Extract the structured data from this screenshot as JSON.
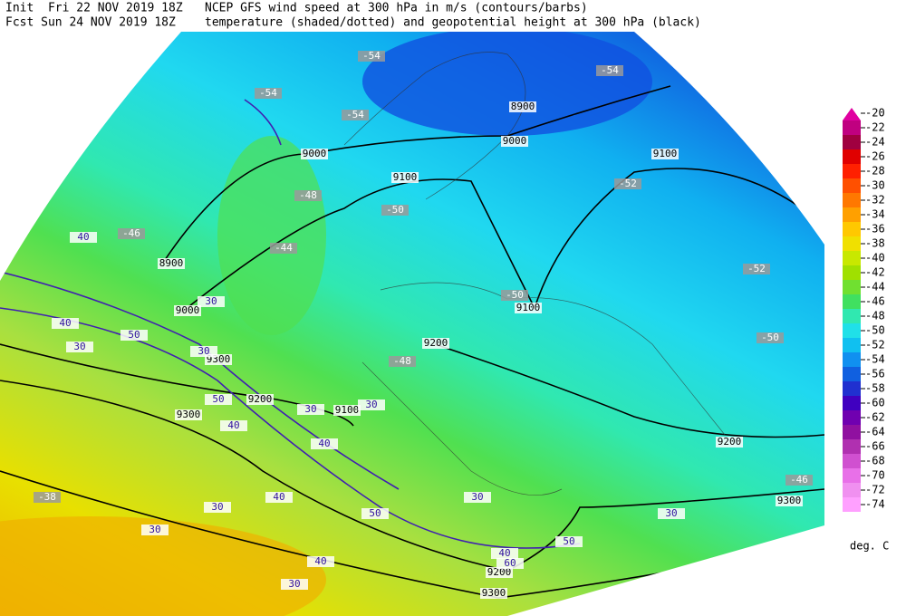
{
  "header": {
    "init": "Init  Fri 22 NOV 2019 18Z",
    "fcst": "Fcst Sun 24 NOV 2019 18Z",
    "line1": "NCEP GFS wind speed at 300 hPa in m/s (contours/barbs)",
    "line2": "temperature (shaded/dotted) and geopotential height at 300 hPa (black)"
  },
  "colorbar": {
    "levels": [
      -20,
      -22,
      -24,
      -26,
      -28,
      -30,
      -32,
      -34,
      -36,
      -38,
      -40,
      -42,
      -44,
      -46,
      -48,
      -50,
      -52,
      -54,
      -56,
      -58,
      -60,
      -62,
      -64,
      -66,
      -68,
      -70,
      -72,
      -74
    ],
    "colors": [
      "#e000a0",
      "#c00080",
      "#a00040",
      "#e00000",
      "#ff2000",
      "#ff5000",
      "#ff7800",
      "#ffa000",
      "#ffc800",
      "#f0e000",
      "#c8e800",
      "#a0e000",
      "#70e030",
      "#40e060",
      "#30e8b0",
      "#20e0e8",
      "#10c0f0",
      "#1090f0",
      "#1060e0",
      "#2030d0",
      "#4000c0",
      "#7000b0",
      "#9010a0",
      "#b030b0",
      "#d050d0",
      "#e870e8",
      "#f090f0",
      "#ffa0ff"
    ],
    "unit": "deg. C"
  },
  "map": {
    "height_labels": [
      8900,
      9000,
      9100,
      8900,
      9000,
      9100,
      9000,
      9100,
      9200,
      9300,
      9200,
      9300,
      9100,
      9200,
      9300,
      9200,
      9300
    ],
    "temperature_labels": [
      -54,
      -54,
      -54,
      -54,
      -52,
      -50,
      -52,
      -50,
      -50,
      -48,
      -48,
      -46,
      -44,
      -46,
      -38
    ],
    "wind_labels": [
      40,
      30,
      40,
      50,
      30,
      30,
      50,
      40,
      30,
      40,
      30,
      30,
      30,
      40,
      30,
      50,
      40,
      30,
      30,
      50,
      40,
      60
    ]
  }
}
